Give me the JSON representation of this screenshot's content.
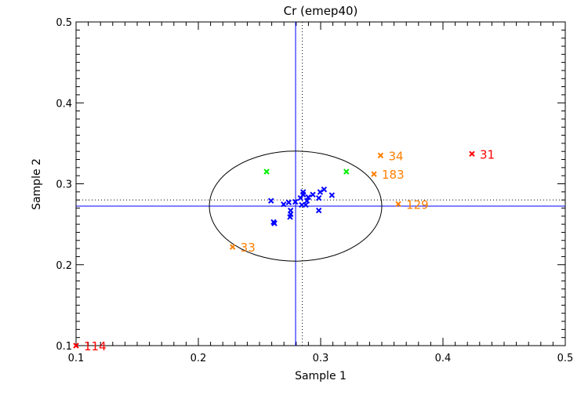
{
  "chart_data": {
    "type": "scatter",
    "title": "Cr (emep40)",
    "xlabel": "Sample 1",
    "ylabel": "Sample 2",
    "xlim": [
      0.1,
      0.5
    ],
    "ylim": [
      0.1,
      0.5
    ],
    "xticks": [
      "0.1",
      "0.2",
      "0.3",
      "0.4",
      "0.5"
    ],
    "yticks": [
      "0.1",
      "0.2",
      "0.3",
      "0.4",
      "0.5"
    ],
    "tick_values": [
      0.1,
      0.2,
      0.3,
      0.4,
      0.5
    ],
    "minor_step": 0.01,
    "grid": false,
    "reference_lines": {
      "solid_x": 0.2795,
      "solid_y": 0.2724,
      "dotted_x": 0.285,
      "dotted_y": 0.28,
      "line_color": "#0000ff"
    },
    "ellipse": {
      "cx": 0.2795,
      "cy": 0.2724,
      "rx": 0.0705,
      "ry": 0.068
    },
    "series": [
      {
        "name": "blue",
        "color": "#0000ff",
        "points": [
          [
            0.2594,
            0.279
          ],
          [
            0.2697,
            0.2746
          ],
          [
            0.2739,
            0.277
          ],
          [
            0.2793,
            0.2777
          ],
          [
            0.2754,
            0.267
          ],
          [
            0.2754,
            0.2624
          ],
          [
            0.275,
            0.259
          ],
          [
            0.2615,
            0.2527
          ],
          [
            0.2622,
            0.251
          ],
          [
            0.2857,
            0.2898
          ],
          [
            0.2857,
            0.2866
          ],
          [
            0.2835,
            0.2824
          ],
          [
            0.2899,
            0.2834
          ],
          [
            0.2936,
            0.2866
          ],
          [
            0.2888,
            0.279
          ],
          [
            0.2846,
            0.2739
          ],
          [
            0.2878,
            0.2739
          ],
          [
            0.2985,
            0.2824
          ],
          [
            0.2996,
            0.2898
          ],
          [
            0.3028,
            0.293
          ],
          [
            0.3092,
            0.2859
          ],
          [
            0.2985,
            0.267
          ]
        ]
      },
      {
        "name": "green",
        "color": "#00ee00",
        "points": [
          [
            0.2558,
            0.315
          ],
          [
            0.321,
            0.315
          ]
        ]
      },
      {
        "name": "orange",
        "color": "#ff7f00",
        "points": [
          {
            "x": 0.349,
            "y": 0.335,
            "label": "34"
          },
          {
            "x": 0.3436,
            "y": 0.312,
            "label": "183"
          },
          {
            "x": 0.3635,
            "y": 0.275,
            "label": "129"
          },
          {
            "x": 0.228,
            "y": 0.222,
            "label": "33"
          }
        ]
      },
      {
        "name": "red",
        "color": "#ff0000",
        "points": [
          {
            "x": 0.4237,
            "y": 0.337,
            "label": "31"
          },
          {
            "x": 0.1,
            "y": 0.1,
            "label": "114"
          }
        ]
      }
    ]
  }
}
